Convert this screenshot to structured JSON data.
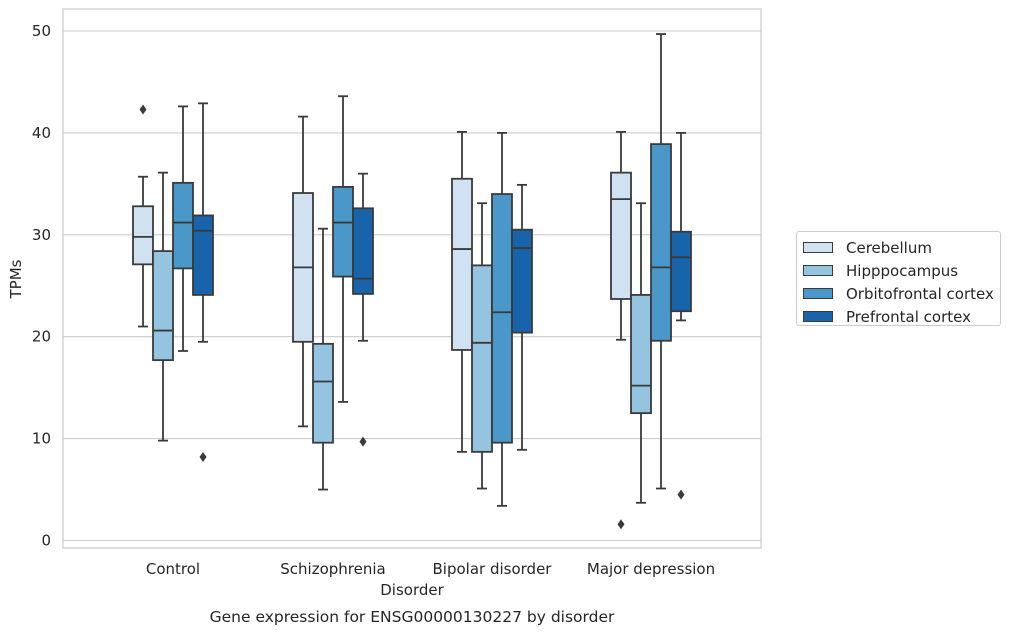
{
  "chart_data": {
    "type": "boxplot",
    "title": "Gene expression for ENSG00000130227 by disorder",
    "xlabel": "Disorder",
    "ylabel": "TPMs",
    "ylim": [
      -1,
      52
    ],
    "yticks": [
      0,
      10,
      20,
      30,
      40,
      50
    ],
    "grid": "horizontal",
    "legend_position": "right, outside plot",
    "categories": [
      "Control",
      "Schizophrenia",
      "Bipolar disorder",
      "Major depression"
    ],
    "series": [
      {
        "name": "Cerebellum",
        "color": "#d0e1f2",
        "boxes": [
          {
            "whislo": 21.0,
            "q1": 27.1,
            "med": 29.8,
            "q3": 32.8,
            "whishi": 35.7,
            "fliers": [
              42.3
            ]
          },
          {
            "whislo": 11.2,
            "q1": 19.5,
            "med": 26.8,
            "q3": 34.1,
            "whishi": 41.6,
            "fliers": []
          },
          {
            "whislo": 8.7,
            "q1": 18.7,
            "med": 28.6,
            "q3": 35.5,
            "whishi": 40.1,
            "fliers": []
          },
          {
            "whislo": 19.7,
            "q1": 23.7,
            "med": 33.5,
            "q3": 36.1,
            "whishi": 40.1,
            "fliers": [
              1.6
            ]
          }
        ]
      },
      {
        "name": "Hipppocampus",
        "color": "#94c4df",
        "boxes": [
          {
            "whislo": 9.8,
            "q1": 17.7,
            "med": 20.6,
            "q3": 28.4,
            "whishi": 36.1,
            "fliers": []
          },
          {
            "whislo": 5.0,
            "q1": 9.6,
            "med": 15.6,
            "q3": 19.3,
            "whishi": 30.6,
            "fliers": []
          },
          {
            "whislo": 5.1,
            "q1": 8.7,
            "med": 19.4,
            "q3": 27.0,
            "whishi": 33.1,
            "fliers": []
          },
          {
            "whislo": 3.7,
            "q1": 12.5,
            "med": 15.2,
            "q3": 24.1,
            "whishi": 33.1,
            "fliers": []
          }
        ]
      },
      {
        "name": "Orbitofrontal cortex",
        "color": "#4a98c9",
        "boxes": [
          {
            "whislo": 18.6,
            "q1": 26.7,
            "med": 31.2,
            "q3": 35.1,
            "whishi": 42.6,
            "fliers": []
          },
          {
            "whislo": 13.6,
            "q1": 25.9,
            "med": 31.2,
            "q3": 34.7,
            "whishi": 43.6,
            "fliers": []
          },
          {
            "whislo": 3.4,
            "q1": 9.6,
            "med": 22.4,
            "q3": 34.0,
            "whishi": 40.0,
            "fliers": []
          },
          {
            "whislo": 5.1,
            "q1": 19.6,
            "med": 26.8,
            "q3": 38.9,
            "whishi": 49.7,
            "fliers": []
          }
        ]
      },
      {
        "name": "Prefrontal cortex",
        "color": "#1764ab",
        "boxes": [
          {
            "whislo": 19.5,
            "q1": 24.1,
            "med": 30.4,
            "q3": 31.9,
            "whishi": 42.9,
            "fliers": [
              8.2
            ]
          },
          {
            "whislo": 19.6,
            "q1": 24.2,
            "med": 25.7,
            "q3": 32.6,
            "whishi": 36.0,
            "fliers": [
              9.7
            ]
          },
          {
            "whislo": 8.9,
            "q1": 20.4,
            "med": 28.7,
            "q3": 30.5,
            "whishi": 34.9,
            "fliers": []
          },
          {
            "whislo": 21.6,
            "q1": 22.5,
            "med": 27.8,
            "q3": 30.3,
            "whishi": 40.0,
            "fliers": [
              4.5
            ]
          }
        ]
      }
    ]
  }
}
